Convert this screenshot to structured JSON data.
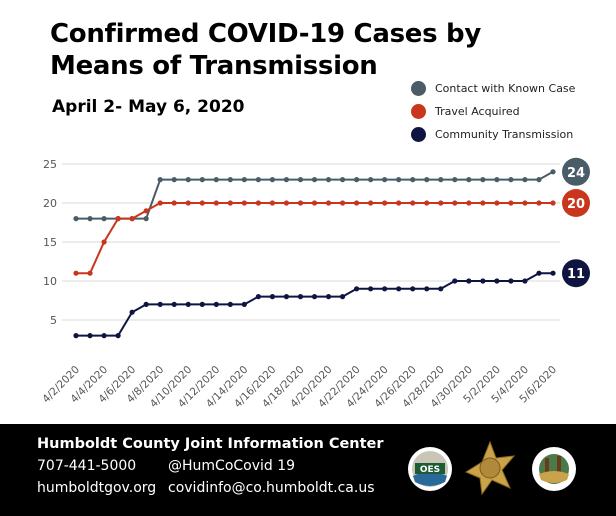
{
  "chart_data": {
    "type": "line",
    "title": "Confirmed COVID-19 Cases by Means of Transmission",
    "subtitle": "April 2- May 6, 2020",
    "xlabel": "",
    "ylabel": "",
    "ylim": [
      0,
      25
    ],
    "yticks": [
      5,
      10,
      15,
      20,
      25
    ],
    "grid": true,
    "legend_position": "top-right",
    "x": [
      "4/2/2020",
      "4/3/2020",
      "4/4/2020",
      "4/5/2020",
      "4/6/2020",
      "4/7/2020",
      "4/8/2020",
      "4/9/2020",
      "4/10/2020",
      "4/11/2020",
      "4/12/2020",
      "4/13/2020",
      "4/14/2020",
      "4/15/2020",
      "4/16/2020",
      "4/17/2020",
      "4/18/2020",
      "4/19/2020",
      "4/20/2020",
      "4/21/2020",
      "4/22/2020",
      "4/23/2020",
      "4/24/2020",
      "4/25/2020",
      "4/26/2020",
      "4/27/2020",
      "4/28/2020",
      "4/29/2020",
      "4/30/2020",
      "5/1/2020",
      "5/2/2020",
      "5/3/2020",
      "5/4/2020",
      "5/5/2020",
      "5/6/2020"
    ],
    "xtick_labels": [
      "4/2/2020",
      "4/4/2020",
      "4/6/2020",
      "4/8/2020",
      "4/10/2020",
      "4/12/2020",
      "4/14/2020",
      "4/16/2020",
      "4/18/2020",
      "4/20/2020",
      "4/22/2020",
      "4/24/2020",
      "4/26/2020",
      "4/28/2020",
      "4/30/2020",
      "5/2/2020",
      "5/4/2020",
      "5/6/2020"
    ],
    "series": [
      {
        "name": "Contact with Known Case",
        "color": "#4a5c68",
        "end_label": "24",
        "values": [
          18,
          18,
          18,
          18,
          18,
          18,
          23,
          23,
          23,
          23,
          23,
          23,
          23,
          23,
          23,
          23,
          23,
          23,
          23,
          23,
          23,
          23,
          23,
          23,
          23,
          23,
          23,
          23,
          23,
          23,
          23,
          23,
          23,
          23,
          24
        ]
      },
      {
        "name": "Travel Acquired",
        "color": "#c9361d",
        "end_label": "20",
        "values": [
          11,
          11,
          15,
          18,
          18,
          19,
          20,
          20,
          20,
          20,
          20,
          20,
          20,
          20,
          20,
          20,
          20,
          20,
          20,
          20,
          20,
          20,
          20,
          20,
          20,
          20,
          20,
          20,
          20,
          20,
          20,
          20,
          20,
          20,
          20
        ]
      },
      {
        "name": "Community Transmission",
        "color": "#0e1541",
        "end_label": "11",
        "values": [
          3,
          3,
          3,
          3,
          6,
          7,
          7,
          7,
          7,
          7,
          7,
          7,
          7,
          8,
          8,
          8,
          8,
          8,
          8,
          8,
          9,
          9,
          9,
          9,
          9,
          9,
          9,
          10,
          10,
          10,
          10,
          10,
          10,
          11,
          11
        ]
      }
    ]
  },
  "footer": {
    "org": "Humboldt County Joint Information Center",
    "phone": "707-441-5000",
    "twitter": "@HumCoCovid 19",
    "website": "humboldtgov.org",
    "email": "covidinfo@co.humboldt.ca.us",
    "logos": [
      "OES",
      "sheriff-star",
      "county-of-humboldt-seal"
    ],
    "oes_text": "OES"
  }
}
